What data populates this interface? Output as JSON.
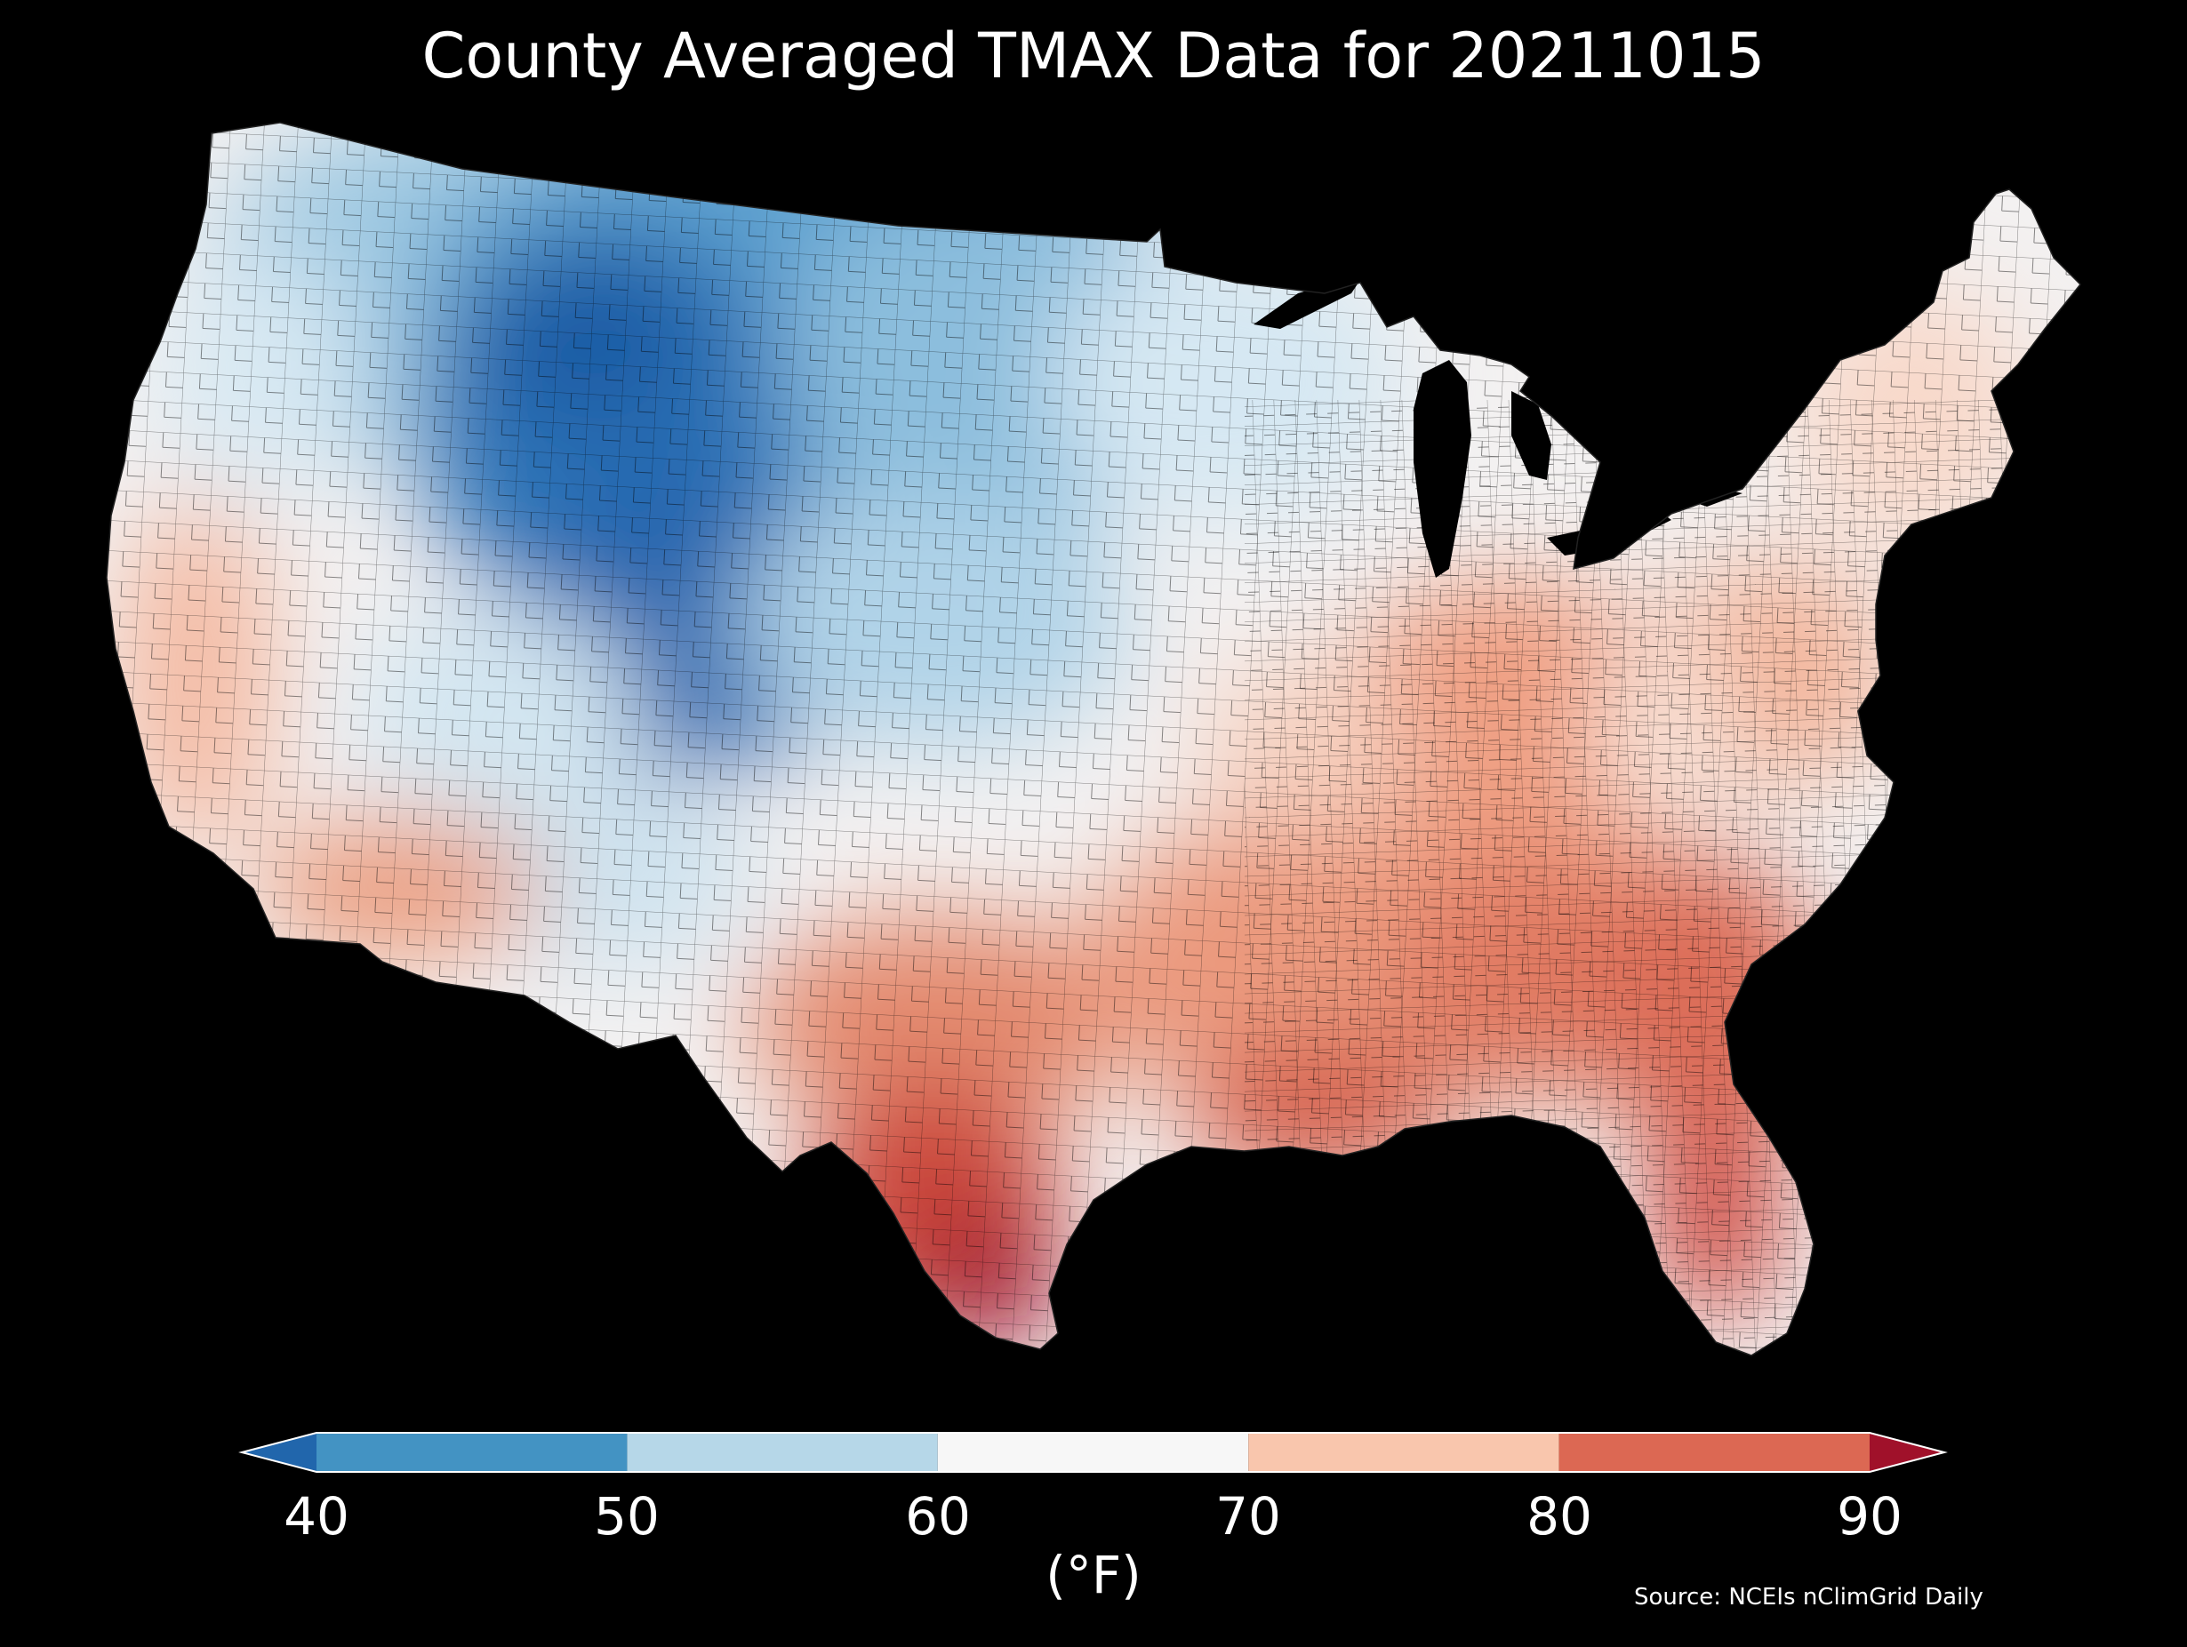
{
  "title": "County Averaged TMAX Data for 20211015",
  "source": "Source: NCEIs nClimGrid Daily",
  "colorbar": {
    "unit_label": "(°F)",
    "ticks": [
      "40",
      "50",
      "60",
      "70",
      "80",
      "90"
    ],
    "bins": [
      {
        "range": "<40",
        "color": "#2166ac"
      },
      {
        "range": "40-50",
        "color": "#4393c3"
      },
      {
        "range": "50-60",
        "color": "#b6d7e8"
      },
      {
        "range": "60-70",
        "color": "#f7f7f7"
      },
      {
        "range": "70-80",
        "color": "#f9c6ad"
      },
      {
        "range": "80-90",
        "color": "#dc6853"
      },
      {
        "range": ">90",
        "color": "#a0112a"
      }
    ],
    "extend": "both"
  },
  "map": {
    "region": "Contiguous United States",
    "variable": "TMAX",
    "units": "°F",
    "boundaries": "county",
    "background": "#000000",
    "warmest_region": "South Texas / Florida",
    "coolest_region": "Northern Rockies / Wyoming"
  }
}
